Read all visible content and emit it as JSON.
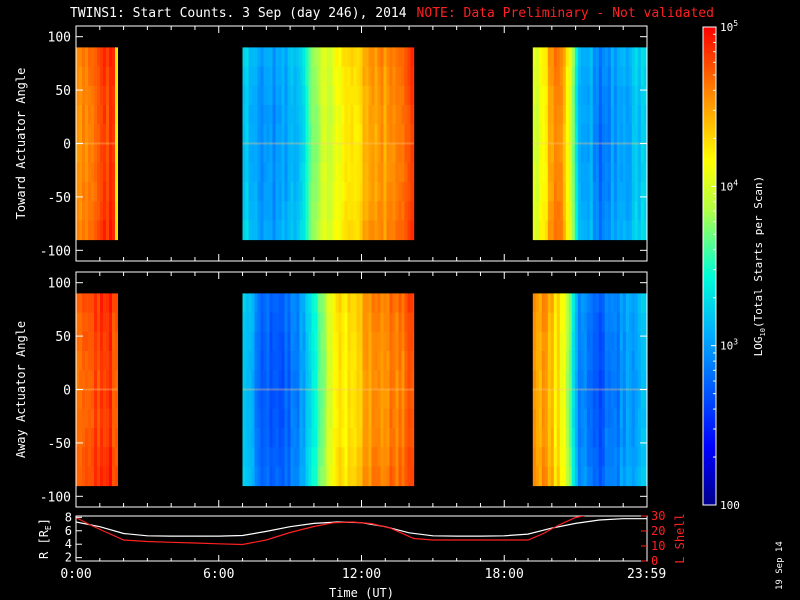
{
  "chart_data": [
    {
      "type": "heatmap",
      "panel": "toward",
      "title": "TWINS1: Start Counts.  3 Sep (day 246), 2014",
      "note": "NOTE: Data Preliminary - Not validated",
      "ylabel": "Toward Actuator Angle",
      "ylim": [
        -110,
        110
      ],
      "yticks": [
        100,
        50,
        0,
        -50,
        -100
      ],
      "xlim": [
        0,
        24
      ],
      "data_range_y": [
        -90,
        90
      ],
      "segments": [
        {
          "start": 0.0,
          "end": 1.75,
          "profile": [
            4.55,
            4.6,
            4.6,
            4.62,
            4.65,
            4.68,
            4.72,
            4.75,
            4.78,
            4.8,
            4.82,
            4.85,
            4.85,
            4.85,
            4.3
          ]
        },
        {
          "start": 7.0,
          "end": 14.2,
          "profile": [
            3.3,
            3.1,
            3.0,
            3.0,
            3.05,
            3.2,
            3.45,
            3.75,
            4.0,
            4.1,
            4.2,
            4.3,
            4.4,
            4.5,
            4.55,
            4.6,
            4.7,
            4.9
          ]
        },
        {
          "start": 19.2,
          "end": 24.0,
          "profile": [
            4.05,
            4.15,
            4.3,
            4.5,
            4.6,
            4.5,
            4.2,
            3.6,
            3.1,
            3.0,
            3.1,
            2.9,
            2.85,
            3.0,
            3.05,
            3.1,
            3.1,
            3.15,
            3.2,
            3.25,
            3.3
          ]
        }
      ]
    },
    {
      "type": "heatmap",
      "panel": "away",
      "ylabel": "Away Actuator Angle",
      "ylim": [
        -110,
        110
      ],
      "yticks": [
        100,
        50,
        0,
        -50,
        -100
      ],
      "xlim": [
        0,
        24
      ],
      "data_range_y": [
        -90,
        90
      ],
      "segments": [
        {
          "start": 0.0,
          "end": 1.75,
          "profile": [
            4.6,
            4.65,
            4.7,
            4.72,
            4.75,
            4.78,
            4.8,
            4.82,
            4.85,
            4.85,
            4.85,
            4.85,
            4.85,
            4.85,
            4.7
          ]
        },
        {
          "start": 7.0,
          "end": 14.2,
          "profile": [
            3.2,
            3.0,
            2.8,
            2.75,
            2.8,
            2.9,
            3.1,
            3.5,
            3.9,
            4.2,
            4.3,
            4.4,
            4.5,
            4.55,
            4.6,
            4.65,
            4.7,
            4.8
          ]
        },
        {
          "start": 19.2,
          "end": 24.0,
          "profile": [
            4.6,
            4.55,
            4.5,
            4.4,
            4.3,
            4.2,
            3.9,
            3.4,
            2.95,
            2.9,
            2.85,
            2.8,
            2.8,
            2.85,
            2.9,
            2.95,
            3.0,
            3.05,
            3.1,
            3.15,
            3.2
          ]
        }
      ]
    },
    {
      "type": "line",
      "panel": "orbit",
      "ylabel_left": "R [R",
      "ylabel_left_sub": "E",
      "ylabel_left_end": "]",
      "ylabel_right": "L Shell",
      "ylim_left": [
        1.5,
        8.2
      ],
      "ylim_right": [
        0,
        30
      ],
      "yticks_left": [
        2,
        4,
        6,
        8
      ],
      "yticks_right": [
        0,
        10,
        20,
        30
      ],
      "xlim": [
        0,
        24
      ],
      "xticks": [
        "0:00",
        "6:00",
        "12:00",
        "18:00",
        "23:59"
      ],
      "xtick_positions": [
        0,
        6,
        12,
        18,
        23.983
      ],
      "xlabel": "Time (UT)",
      "series": [
        {
          "axis": "left",
          "color": "#ffffff",
          "x": [
            0,
            1,
            2,
            3,
            4,
            5,
            6,
            7,
            8,
            9,
            10,
            11,
            12,
            13,
            14,
            15,
            16,
            17,
            18,
            19,
            20,
            21,
            22,
            23,
            24
          ],
          "y": [
            7.3,
            6.6,
            5.6,
            5.25,
            5.2,
            5.2,
            5.2,
            5.3,
            5.9,
            6.6,
            7.1,
            7.3,
            7.2,
            6.6,
            5.7,
            5.25,
            5.2,
            5.2,
            5.25,
            5.5,
            6.4,
            7.1,
            7.6,
            7.8,
            7.8
          ]
        },
        {
          "axis": "right",
          "color": "#ff2020",
          "x": [
            0,
            0.6,
            1.3,
            2.0,
            3,
            4,
            5,
            6,
            7.0,
            8,
            9,
            10,
            10.8,
            11.6,
            12.4,
            13.2,
            14.2,
            15,
            16,
            17,
            18,
            19.0,
            19.6,
            20.3,
            21.0,
            21.6
          ],
          "y": [
            29,
            24,
            19,
            14,
            13,
            12.5,
            12,
            11.5,
            11,
            14,
            19,
            23,
            25.5,
            26,
            25,
            22,
            15,
            14,
            14,
            14,
            14,
            14,
            18,
            24,
            29,
            31
          ]
        }
      ]
    }
  ],
  "colorbar": {
    "label": "LOG",
    "label_sub": "10",
    "label_end": "(Total Starts per Scan)",
    "min": 2.0,
    "max": 5.0,
    "ticks": [
      {
        "value": 5,
        "text": "10",
        "sup": "5"
      },
      {
        "value": 4,
        "text": "10",
        "sup": "4"
      },
      {
        "value": 3,
        "text": "10",
        "sup": "3"
      },
      {
        "value": 2,
        "text": "100",
        "sup": ""
      }
    ]
  },
  "stamp": "19 Sep 14"
}
